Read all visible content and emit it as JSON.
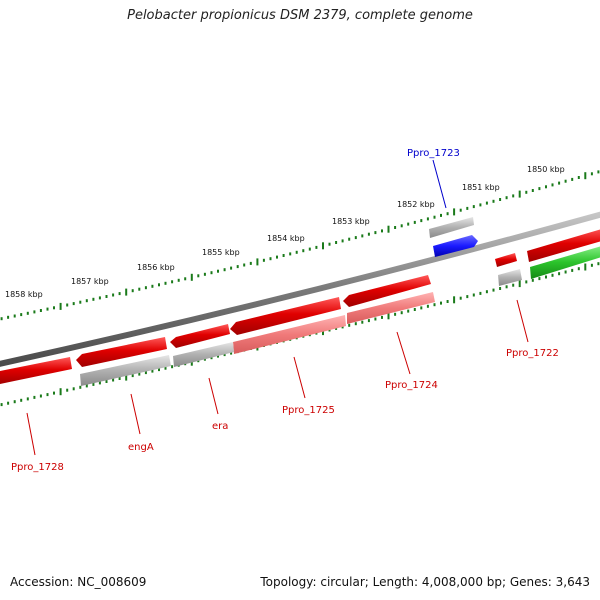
{
  "title": "Pelobacter propionicus DSM 2379, complete genome",
  "footer": {
    "accession": "Accession: NC_008609",
    "topology": "Topology: circular; Length: 4,008,000 bp; Genes: 3,643"
  },
  "colors": {
    "forward_gene": "#e00000",
    "forward_gene_light": "#f08080",
    "rna_gene": "#1a1aff",
    "other_gene": "#22bb22",
    "non_coding": "#a8a8a8",
    "tick": "#1a7a1a",
    "backbone": "#808080",
    "label_red": "#cc0000",
    "label_blue": "#0000cc"
  },
  "scale_labels": [
    "1850 kbp",
    "1851 kbp",
    "1852 kbp",
    "1853 kbp",
    "1854 kbp",
    "1855 kbp",
    "1856 kbp",
    "1857 kbp",
    "1858 kbp"
  ],
  "gene_labels": [
    "Ppro_1722",
    "Ppro_1723",
    "Ppro_1724",
    "Ppro_1725",
    "era",
    "engA",
    "Ppro_1728"
  ]
}
